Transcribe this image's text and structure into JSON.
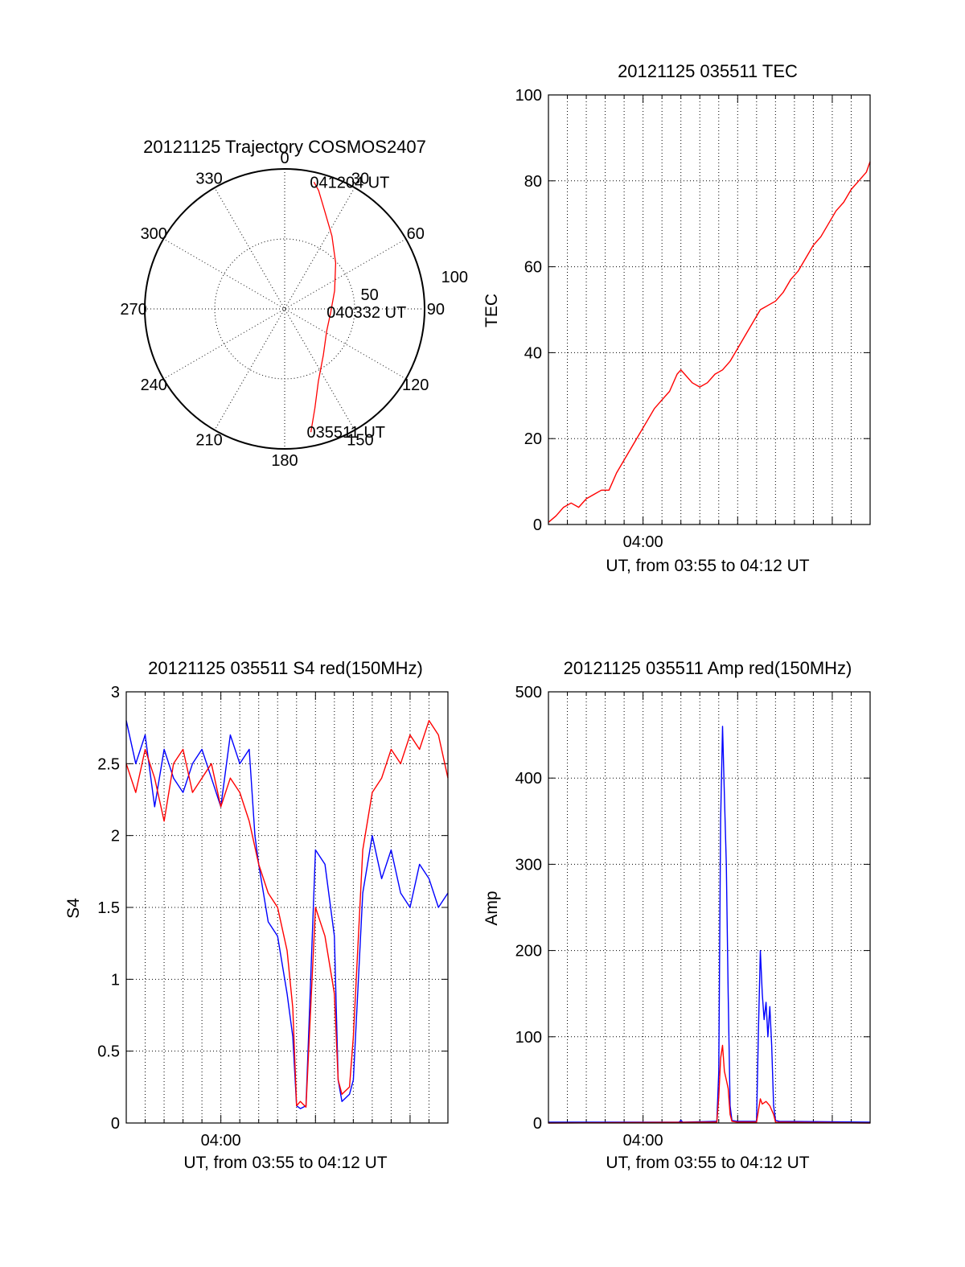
{
  "chart_data": [
    {
      "type": "polar",
      "title": "20121125 Trajectory COSMOS2407",
      "azimuth_labels": [
        "0",
        "30",
        "60",
        "90",
        "120",
        "150",
        "180",
        "210",
        "240",
        "270",
        "300",
        "330"
      ],
      "radial_labels": [
        "50",
        "100"
      ],
      "rlim": [
        0,
        100
      ],
      "series": [
        {
          "color": "#ff0000",
          "points": [
            {
              "az": 168,
              "r": 90
            },
            {
              "az": 163,
              "r": 74
            },
            {
              "az": 155,
              "r": 57
            },
            {
              "az": 140,
              "r": 43
            },
            {
              "az": 118,
              "r": 34
            },
            {
              "az": 94,
              "r": 33
            },
            {
              "az": 70,
              "r": 38
            },
            {
              "az": 48,
              "r": 49
            },
            {
              "az": 33,
              "r": 62
            },
            {
              "az": 22,
              "r": 76
            },
            {
              "az": 16,
              "r": 88
            },
            {
              "az": 13,
              "r": 93
            }
          ]
        }
      ],
      "annotations": [
        {
          "text": "041204 UT",
          "az": 13,
          "r": 93
        },
        {
          "text": "040332 UT",
          "az": 94,
          "r": 33
        },
        {
          "text": "035511 UT",
          "az": 168,
          "r": 90
        }
      ]
    },
    {
      "type": "line",
      "title": "20121125 035511 TEC",
      "xlabel": "UT, from 03:55 to 04:12 UT",
      "ylabel": "TEC",
      "x_tick_labels": [
        {
          "label": "04:00",
          "minute": 5
        }
      ],
      "xlim": [
        0,
        17
      ],
      "ylim": [
        0,
        100
      ],
      "y_ticks": [
        "0",
        "20",
        "40",
        "60",
        "80",
        "100"
      ],
      "series": [
        {
          "color": "#ff0000",
          "minutes": [
            0,
            0.4,
            0.8,
            1.2,
            1.6,
            2.0,
            2.4,
            2.8,
            3.2,
            3.6,
            4.0,
            4.4,
            4.8,
            5.2,
            5.6,
            6.0,
            6.4,
            6.8,
            7.0,
            7.2,
            7.6,
            8.0,
            8.4,
            8.8,
            9.2,
            9.6,
            10.0,
            10.4,
            10.8,
            11.2,
            11.6,
            12.0,
            12.4,
            12.8,
            13.2,
            13.6,
            14.0,
            14.4,
            14.8,
            15.2,
            15.6,
            16.0,
            16.4,
            16.8,
            17.0
          ],
          "values": [
            0.5,
            2,
            4,
            5,
            4,
            6,
            7,
            8,
            8,
            12,
            15,
            18,
            21,
            24,
            27,
            29,
            31,
            35,
            36,
            35,
            33,
            32,
            33,
            35,
            36,
            38,
            41,
            44,
            47,
            50,
            51,
            52,
            54,
            57,
            59,
            62,
            65,
            67,
            70,
            73,
            75,
            78,
            80,
            82,
            84.5
          ]
        }
      ]
    },
    {
      "type": "line",
      "title": "20121125 035511 S4 red(150MHz)",
      "xlabel": "UT, from 03:55 to 04:12 UT",
      "ylabel": "S4",
      "x_tick_labels": [
        {
          "label": "04:00",
          "minute": 5
        }
      ],
      "xlim": [
        0,
        17
      ],
      "ylim": [
        0,
        3
      ],
      "y_ticks": [
        "0",
        "0.5",
        "1",
        "1.5",
        "2",
        "2.5",
        "3"
      ],
      "series": [
        {
          "color": "#0000ff",
          "minutes": [
            0,
            0.5,
            1.0,
            1.5,
            2.0,
            2.5,
            3.0,
            3.5,
            4.0,
            4.5,
            5.0,
            5.5,
            6.0,
            6.5,
            6.8,
            7.0,
            7.5,
            8.0,
            8.5,
            8.8,
            9.0,
            9.2,
            9.5,
            10.0,
            10.5,
            11.0,
            11.2,
            11.4,
            11.8,
            12.0,
            12.5,
            13.0,
            13.5,
            14.0,
            14.5,
            15.0,
            15.5,
            16.0,
            16.5,
            17.0
          ],
          "values": [
            2.8,
            2.5,
            2.7,
            2.2,
            2.6,
            2.4,
            2.3,
            2.5,
            2.6,
            2.4,
            2.2,
            2.7,
            2.5,
            2.6,
            2.0,
            1.8,
            1.4,
            1.3,
            0.9,
            0.6,
            0.12,
            0.1,
            0.12,
            1.9,
            1.8,
            1.3,
            0.3,
            0.15,
            0.2,
            0.3,
            1.6,
            2.0,
            1.7,
            1.9,
            1.6,
            1.5,
            1.8,
            1.7,
            1.5,
            1.6
          ]
        },
        {
          "color": "#ff0000",
          "minutes": [
            0,
            0.5,
            1.0,
            1.5,
            2.0,
            2.5,
            3.0,
            3.5,
            4.0,
            4.5,
            5.0,
            5.5,
            6.0,
            6.5,
            7.0,
            7.5,
            8.0,
            8.5,
            8.8,
            9.0,
            9.2,
            9.5,
            10.0,
            10.5,
            11.0,
            11.2,
            11.4,
            11.8,
            12.0,
            12.5,
            13.0,
            13.5,
            14.0,
            14.5,
            15.0,
            15.5,
            16.0,
            16.5,
            17.0
          ],
          "values": [
            2.5,
            2.3,
            2.6,
            2.4,
            2.1,
            2.5,
            2.6,
            2.3,
            2.4,
            2.5,
            2.2,
            2.4,
            2.3,
            2.1,
            1.8,
            1.6,
            1.5,
            1.2,
            0.8,
            0.12,
            0.15,
            0.11,
            1.5,
            1.3,
            0.9,
            0.3,
            0.2,
            0.25,
            0.6,
            1.9,
            2.3,
            2.4,
            2.6,
            2.5,
            2.7,
            2.6,
            2.8,
            2.7,
            2.4
          ]
        }
      ]
    },
    {
      "type": "line",
      "title": "20121125 035511 Amp red(150MHz)",
      "xlabel": "UT, from 03:55 to 04:12 UT",
      "ylabel": "Amp",
      "x_tick_labels": [
        {
          "label": "04:00",
          "minute": 5
        }
      ],
      "xlim": [
        0,
        17
      ],
      "ylim": [
        0,
        500
      ],
      "y_ticks": [
        "0",
        "100",
        "200",
        "300",
        "400",
        "500"
      ],
      "series": [
        {
          "color": "#0000ff",
          "minutes": [
            0,
            6.9,
            7.0,
            7.1,
            8.9,
            9.0,
            9.1,
            9.2,
            9.3,
            9.4,
            9.5,
            9.6,
            9.7,
            10.0,
            10.5,
            11.0,
            11.1,
            11.2,
            11.3,
            11.4,
            11.5,
            11.6,
            11.7,
            11.8,
            11.9,
            12.0,
            12.2,
            17.0
          ],
          "values": [
            1,
            1,
            3,
            1,
            2,
            60,
            350,
            460,
            380,
            300,
            150,
            20,
            3,
            2,
            2,
            2,
            110,
            200,
            150,
            120,
            140,
            100,
            135,
            90,
            20,
            3,
            2,
            1
          ]
        },
        {
          "color": "#ff0000",
          "minutes": [
            0,
            8.9,
            9.0,
            9.1,
            9.2,
            9.3,
            9.4,
            9.5,
            9.6,
            9.7,
            10.0,
            11.0,
            11.1,
            11.2,
            11.3,
            11.5,
            11.7,
            11.9,
            12.0,
            17.0
          ],
          "values": [
            0,
            1,
            30,
            75,
            90,
            60,
            50,
            40,
            10,
            2,
            1,
            1,
            15,
            28,
            22,
            25,
            20,
            10,
            1,
            0
          ]
        }
      ]
    }
  ]
}
